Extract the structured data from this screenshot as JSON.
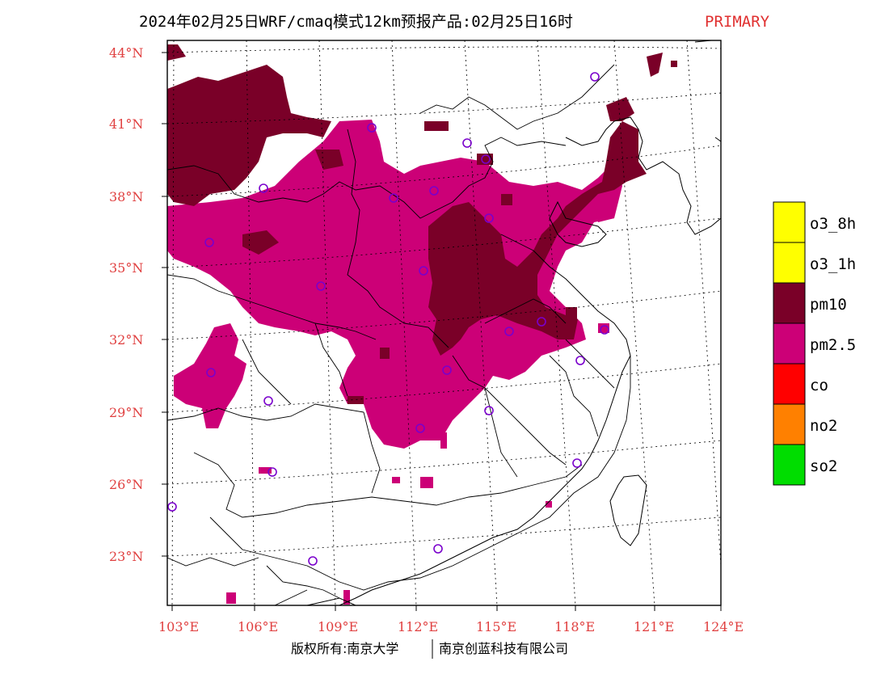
{
  "header": {
    "title": "2024年02月25日WRF/cmaq模式12km预报产品:02月25日16时",
    "tag": "PRIMARY"
  },
  "axes": {
    "lat_labels": [
      "44°N",
      "41°N",
      "38°N",
      "35°N",
      "32°N",
      "29°N",
      "26°N",
      "23°N"
    ],
    "lon_labels": [
      "103°E",
      "106°E",
      "109°E",
      "112°E",
      "115°E",
      "118°E",
      "121°E",
      "124°E"
    ]
  },
  "legend": {
    "items": [
      {
        "label": "o3_8h",
        "color": "#ffff00"
      },
      {
        "label": "o3_1h",
        "color": "#ffff00"
      },
      {
        "label": "pm10",
        "color": "#7a0028"
      },
      {
        "label": "pm2.5",
        "color": "#cc0077"
      },
      {
        "label": "co",
        "color": "#ff0000"
      },
      {
        "label": "no2",
        "color": "#ff8000"
      },
      {
        "label": "so2",
        "color": "#00dd00"
      }
    ]
  },
  "colors": {
    "pm10": "#7a0028",
    "pm25": "#cc0077",
    "station": "#7a00cc",
    "label": "#e04040"
  },
  "footer": {
    "copyright_left": "版权所有:南京大学",
    "copyright_right": "南京创蓝科技有限公司"
  }
}
